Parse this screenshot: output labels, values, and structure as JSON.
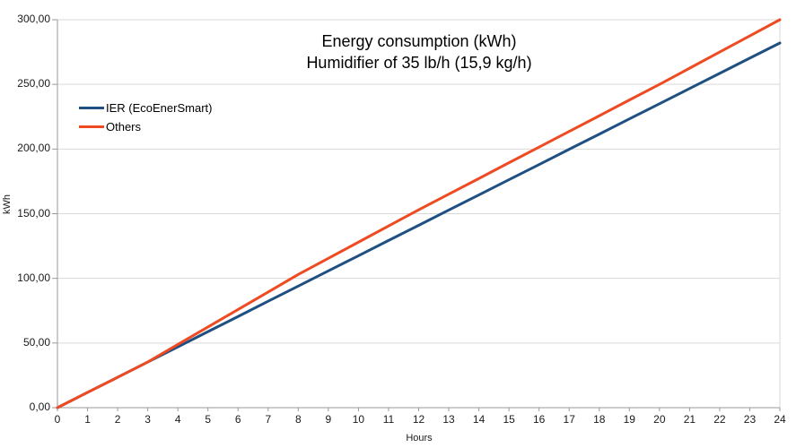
{
  "chart_data": {
    "type": "line",
    "title": "Energy consumption (kWh)",
    "subtitle": "Humidifier of 35 lb/h (15,9 kg/h)",
    "xlabel": "Hours",
    "ylabel": "kWh",
    "xlim": [
      0,
      24
    ],
    "ylim": [
      0,
      300
    ],
    "grid": "horizontal",
    "legend_position": "top-left-inside",
    "x": [
      0,
      1,
      2,
      3,
      4,
      5,
      6,
      7,
      8,
      9,
      10,
      11,
      12,
      13,
      14,
      15,
      16,
      17,
      18,
      19,
      20,
      21,
      22,
      23,
      24
    ],
    "x_tick_labels": [
      "0",
      "1",
      "2",
      "3",
      "4",
      "5",
      "6",
      "7",
      "8",
      "9",
      "10",
      "11",
      "12",
      "13",
      "14",
      "15",
      "16",
      "17",
      "18",
      "19",
      "20",
      "21",
      "22",
      "23",
      "24"
    ],
    "y_ticks": {
      "values": [
        0,
        50,
        100,
        150,
        200,
        250,
        300
      ],
      "labels": [
        "0,00",
        "50,00",
        "100,00",
        "150,00",
        "200,00",
        "250,00",
        "300,00"
      ]
    },
    "series": [
      {
        "name": "IER (EcoEnerSmart)",
        "color": "#1f5082",
        "values": [
          0,
          11.8,
          23.5,
          35.3,
          47.0,
          58.8,
          70.5,
          82.3,
          94.0,
          105.8,
          117.5,
          129.3,
          141.0,
          152.8,
          164.5,
          176.3,
          188.0,
          199.8,
          211.5,
          223.3,
          235.0,
          246.8,
          258.5,
          270.3,
          282.0
        ]
      },
      {
        "name": "Others",
        "color": "#ee4b22",
        "values": [
          0,
          11.8,
          23.5,
          35.3,
          48.9,
          62.4,
          75.9,
          89.4,
          103.0,
          115.5,
          128.0,
          140.5,
          153.0,
          165.1,
          177.2,
          189.4,
          201.5,
          213.6,
          225.7,
          237.9,
          250.0,
          262.5,
          275.0,
          287.5,
          300.0
        ]
      }
    ],
    "style": {
      "gridline_color": "#d9d9d9",
      "axis_color": "#9a9a9a",
      "text_color": "#000000",
      "background": "#ffffff"
    }
  }
}
